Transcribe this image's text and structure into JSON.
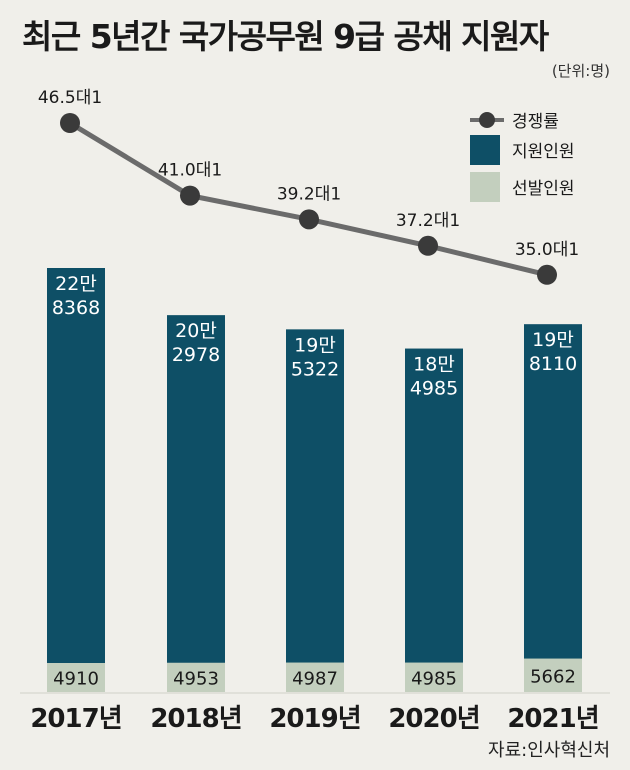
{
  "chart_data": {
    "type": "bar",
    "title": "최근 5년간 국가공무원 9급 공채 지원자",
    "unit": "(단위:명)",
    "source": "자료:인사혁신처",
    "categories": [
      "2017년",
      "2018년",
      "2019년",
      "2020년",
      "2021년"
    ],
    "series": [
      {
        "name": "지원인원",
        "values": [
          228368,
          202978,
          195322,
          184985,
          198110
        ],
        "labels": [
          [
            "22만",
            "8368"
          ],
          [
            "20만",
            "2978"
          ],
          [
            "19만",
            "5322"
          ],
          [
            "18만",
            "4985"
          ],
          [
            "19만",
            "8110"
          ]
        ],
        "color": "#0e4f66"
      },
      {
        "name": "선발인원",
        "values": [
          4910,
          4953,
          4987,
          4985,
          5662
        ],
        "labels": [
          "4910",
          "4953",
          "4987",
          "4985",
          "5662"
        ],
        "color": "#c3cfbe"
      }
    ],
    "line": {
      "name": "경쟁률",
      "values": [
        46.5,
        41.0,
        39.2,
        37.2,
        35.0
      ],
      "labels": [
        "46.5대1",
        "41.0대1",
        "39.2대1",
        "37.2대1",
        "35.0대1"
      ],
      "color": "#6b6b6b",
      "marker_color": "#3a3a3a"
    },
    "legend_position": "top-right"
  }
}
